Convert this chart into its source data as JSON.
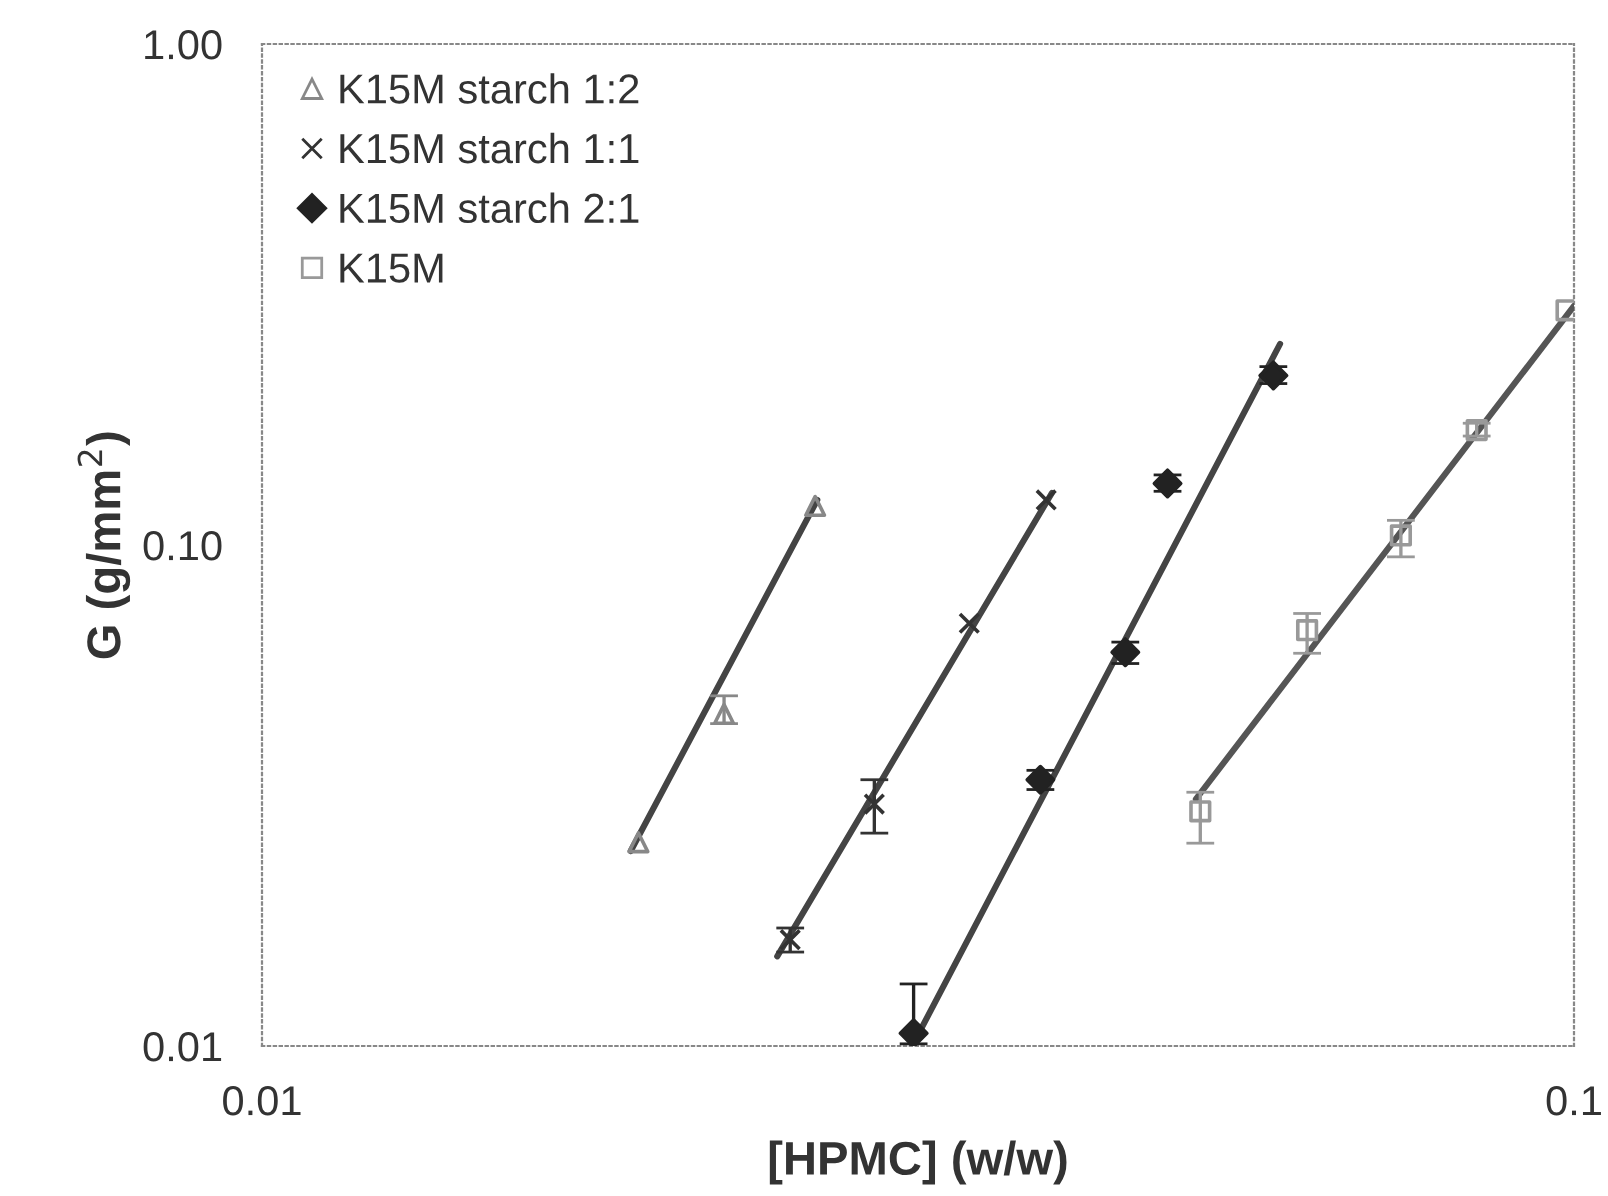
{
  "chart_data": {
    "type": "scatter",
    "xlabel": "[HPMC] (w/w)",
    "ylabel": "G (g/mm$^{2}$)",
    "log": "xy",
    "xlim": [
      0.01,
      0.1
    ],
    "xticks": [
      0.01,
      0.1
    ],
    "ylim": [
      0.01,
      1.0
    ],
    "yticks": [
      0.01,
      {
        "value": 0.1,
        "label": "0.10"
      },
      {
        "value": 1.0,
        "label": "1.00"
      }
    ],
    "grid": false,
    "legend": "top left",
    "series": [
      {
        "name": "K15M starch 1:2",
        "marker": "triangle",
        "color": "#888888",
        "x": [
          0.01936,
          0.0225,
          0.0264
        ],
        "values": [
          0.0255,
          0.046,
          0.1197
        ],
        "errors": [
          null,
          [
            0.044,
            0.05
          ],
          null
        ]
      },
      {
        "name": "K15M starch 1:1",
        "marker": "cross",
        "color": "#333333",
        "x": [
          0.02527,
          0.02929,
          0.0346,
          0.0396
        ],
        "values": [
          0.0163,
          0.0304,
          0.0698,
          0.123
        ],
        "errors": [
          [
            0.0154,
            0.0172
          ],
          [
            0.0266,
            0.034
          ],
          null,
          null
        ]
      },
      {
        "name": "K15M starch 2:1",
        "marker": "diamond",
        "color": "#222222",
        "x": [
          0.03138,
          0.0392,
          0.0455,
          0.049,
          0.059
        ],
        "values": [
          0.0106,
          0.034,
          0.0611,
          0.1327,
          0.218
        ],
        "errors": [
          [
            0.0101,
            0.0133
          ],
          [
            0.0325,
            0.0355
          ],
          [
            0.058,
            0.064
          ],
          [
            0.128,
            0.138
          ],
          [
            0.21,
            0.227
          ]
        ]
      },
      {
        "name": "K15M",
        "marker": "square",
        "color": "#999999",
        "x": [
          0.0519,
          0.0626,
          0.0738,
          0.0843,
          0.0987
        ],
        "values": [
          0.0294,
          0.0676,
          0.1045,
          0.1696,
          0.294
        ],
        "errors": [
          [
            0.0254,
            0.0321
          ],
          [
            0.0608,
            0.073
          ],
          [
            0.0947,
            0.112
          ],
          [
            0.165,
            0.175
          ],
          null
        ]
      },
      {
        "type": "line",
        "marker": "none",
        "color": "#444444",
        "x": [
          0.0191,
          0.0265
        ],
        "values": [
          0.0245,
          0.123
        ]
      },
      {
        "type": "line",
        "marker": "none",
        "color": "#444444",
        "x": [
          0.0247,
          0.04
        ],
        "values": [
          0.0151,
          0.127
        ]
      },
      {
        "type": "line",
        "marker": "none",
        "color": "#444444",
        "x": [
          0.0313,
          0.0597
        ],
        "values": [
          0.01,
          0.252
        ]
      },
      {
        "type": "line",
        "marker": "none",
        "color": "#555555",
        "x": [
          0.0515,
          0.1
        ],
        "values": [
          0.0311,
          0.3
        ]
      }
    ]
  }
}
